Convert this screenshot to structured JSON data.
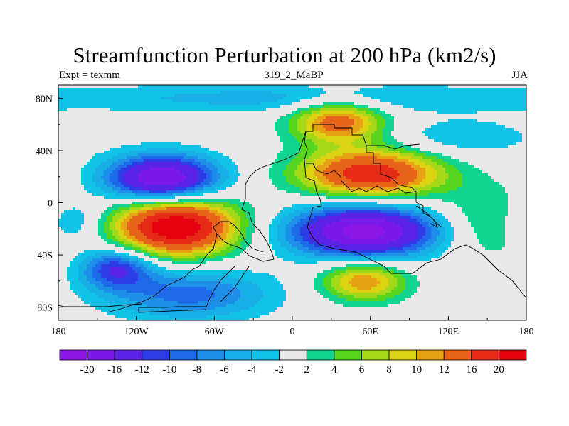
{
  "chart_data": {
    "type": "heatmap",
    "title": "Streamfunction Perturbation at 200 hPa (km2/s)",
    "left_string": "Expt = texmm",
    "center_string": "319_2_MaBP",
    "right_string": "JJA",
    "x_ticks": [
      "180",
      "120W",
      "60W",
      "0",
      "60E",
      "120E",
      "180"
    ],
    "y_ticks": [
      "80N",
      "40N",
      "0",
      "40S",
      "80S"
    ],
    "xlim": [
      -180,
      180
    ],
    "ylim": [
      -90,
      90
    ],
    "colorbar_labels": [
      "-20",
      "-16",
      "-12",
      "-10",
      "-8",
      "-6",
      "-4",
      "-2",
      "2",
      "4",
      "6",
      "8",
      "10",
      "12",
      "16",
      "20"
    ],
    "colorbar_levels": [
      -20,
      -16,
      -12,
      -10,
      -8,
      -6,
      -4,
      -2,
      2,
      4,
      6,
      8,
      10,
      12,
      16,
      20
    ],
    "colors": [
      "#8c18e6",
      "#7a1ae8",
      "#5a22e6",
      "#2e3ce6",
      "#1e6ae8",
      "#1e8ee8",
      "#18aee6",
      "#10c3e6",
      "#e8e8e8",
      "#12d490",
      "#56d41e",
      "#a4d818",
      "#dcd214",
      "#e6a214",
      "#e6641a",
      "#e62a18",
      "#e60010"
    ],
    "features": [
      {
        "lon": -90,
        "lat": -18,
        "amplitude": 24,
        "sx": 33,
        "sy": 16
      },
      {
        "lon": -100,
        "lat": 18,
        "amplitude": -21,
        "sx": 30,
        "sy": 13
      },
      {
        "lon": 55,
        "lat": -22,
        "amplitude": -22,
        "sx": 40,
        "sy": 14
      },
      {
        "lon": 60,
        "lat": 22,
        "amplitude": 19,
        "sx": 38,
        "sy": 13
      },
      {
        "lon": 35,
        "lat": 62,
        "amplitude": 14,
        "sx": 25,
        "sy": 12
      },
      {
        "lon": 55,
        "lat": -60,
        "amplitude": 12,
        "sx": 23,
        "sy": 11
      },
      {
        "lon": -135,
        "lat": -50,
        "amplitude": -12,
        "sx": 20,
        "sy": 11
      },
      {
        "lon": -80,
        "lat": -70,
        "amplitude": -9,
        "sx": 45,
        "sy": 14
      },
      {
        "lon": 150,
        "lat": -15,
        "amplitude": 5,
        "sx": 28,
        "sy": 20
      },
      {
        "lon": -170,
        "lat": -15,
        "amplitude": -6,
        "sx": 18,
        "sy": 12
      },
      {
        "lon": 0,
        "lat": 80,
        "amplitude": -5,
        "sx": 120,
        "sy": 8
      },
      {
        "lon": 130,
        "lat": 50,
        "amplitude": -4,
        "sx": 40,
        "sy": 10
      }
    ]
  }
}
